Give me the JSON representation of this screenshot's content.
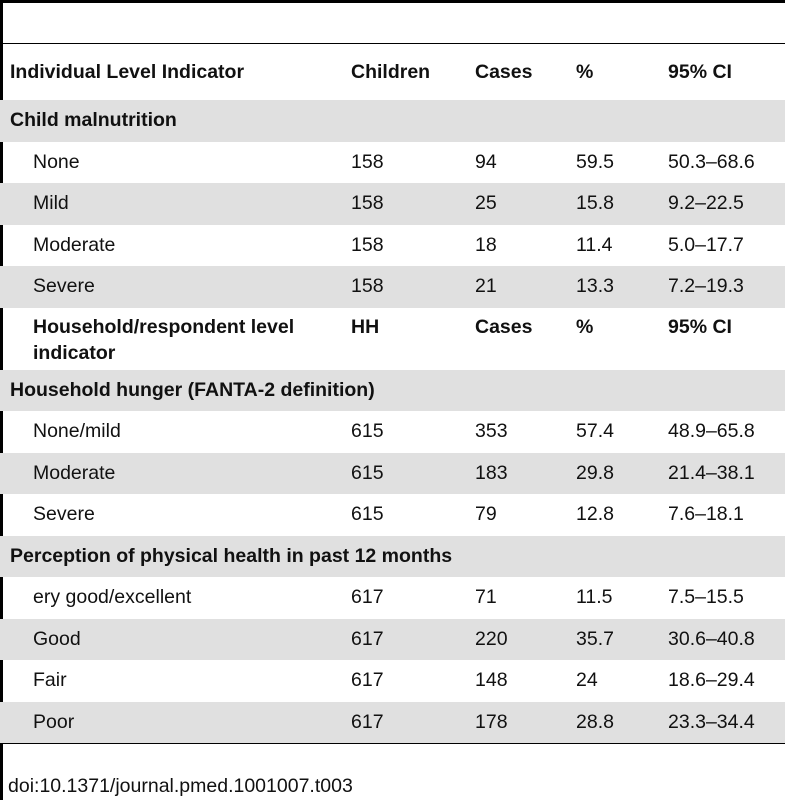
{
  "table": {
    "col_headers": [
      "Individual Level Indicator",
      "Children",
      "Cases",
      "%",
      "95% CI"
    ],
    "sections": {
      "child_malnutrition": "Child malnutrition",
      "household_hunger": "Household hunger (FANTA-2 definition)",
      "physical_health": "Perception of physical health in past 12 months"
    },
    "sub_headers": [
      "Household/respondent level indicator",
      "HH",
      "Cases",
      "%",
      "95% CI"
    ],
    "rows": {
      "malnutrition": [
        [
          "None",
          "158",
          "94",
          "59.5",
          "50.3–68.6"
        ],
        [
          "Mild",
          "158",
          "25",
          "15.8",
          "9.2–22.5"
        ],
        [
          "Moderate",
          "158",
          "18",
          "11.4",
          "5.0–17.7"
        ],
        [
          "Severe",
          "158",
          "21",
          "13.3",
          "7.2–19.3"
        ]
      ],
      "hunger": [
        [
          "None/mild",
          "615",
          "353",
          "57.4",
          "48.9–65.8"
        ],
        [
          "Moderate",
          "615",
          "183",
          "29.8",
          "21.4–38.1"
        ],
        [
          "Severe",
          "615",
          "79",
          "12.8",
          "7.6–18.1"
        ]
      ],
      "health": [
        [
          "ery good/excellent",
          "617",
          "71",
          "11.5",
          "7.5–15.5"
        ],
        [
          "Good",
          "617",
          "220",
          "35.7",
          "30.6–40.8"
        ],
        [
          "Fair",
          "617",
          "148",
          "24",
          "18.6–29.4"
        ],
        [
          "Poor",
          "617",
          "178",
          "28.8",
          "23.3–34.4"
        ]
      ]
    }
  },
  "doi": "doi:10.1371/journal.pmed.1001007.t003"
}
